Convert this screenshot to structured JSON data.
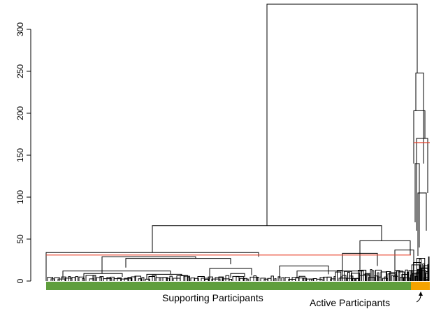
{
  "chart_data": {
    "type": "dendrogram",
    "title": "",
    "xlabel": "",
    "ylabel": "",
    "ylim": [
      0,
      330
    ],
    "y_ticks": [
      0,
      50,
      100,
      150,
      200,
      250,
      300
    ],
    "y_tick_labels": [
      "0",
      "50",
      "100",
      "150",
      "200",
      "250",
      "300"
    ],
    "root_height": 330,
    "cut_lines": [
      {
        "span": "Supporting Participants",
        "height": 31,
        "color": "#e8402a"
      },
      {
        "span": "Active Participants",
        "height": 165,
        "color": "#e8402a"
      }
    ],
    "groups": [
      {
        "name": "Supporting Participants",
        "label": "Supporting Participants",
        "color": "#5f9e3d",
        "merge_height": 66,
        "share": 0.95
      },
      {
        "name": "Active Participants",
        "label": "Active Participants",
        "color": "#f5a300",
        "merge_height": 248,
        "share": 0.05
      }
    ],
    "major_merges": [
      {
        "height": 330,
        "children": [
          "Supporting Participants",
          "Active Participants"
        ]
      },
      {
        "height": 66,
        "group": "Supporting Participants"
      },
      {
        "height": 34,
        "group": "Supporting Participants"
      },
      {
        "height": 29,
        "group": "Supporting Participants"
      },
      {
        "height": 37,
        "group": "Supporting Participants"
      },
      {
        "height": 48,
        "group": "Supporting Participants"
      },
      {
        "height": 248,
        "group": "Active Participants"
      },
      {
        "height": 203,
        "group": "Active Participants"
      },
      {
        "height": 170,
        "group": "Active Participants"
      },
      {
        "height": 105,
        "group": "Active Participants"
      }
    ]
  }
}
